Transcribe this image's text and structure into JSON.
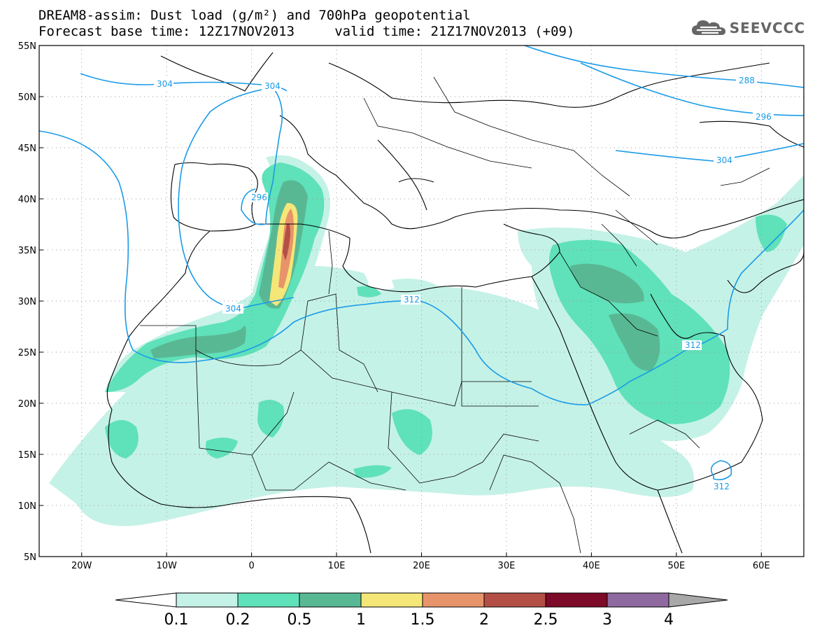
{
  "title": {
    "line1": "DREAM8-assim: Dust load (g/m²) and 700hPa geopotential",
    "line2": "Forecast base time: 12Z17NOV2013     valid time: 21Z17NOV2013 (+09)"
  },
  "logo": {
    "text": "SEEVCCC",
    "icon": "cloud-icon"
  },
  "axes": {
    "lat_labels": [
      "55N",
      "50N",
      "45N",
      "40N",
      "35N",
      "30N",
      "25N",
      "20N",
      "15N",
      "10N",
      "5N"
    ],
    "lon_labels": [
      "20W",
      "10W",
      "0",
      "10E",
      "20E",
      "30E",
      "40E",
      "50E",
      "60E"
    ],
    "lat_values": [
      55,
      50,
      45,
      40,
      35,
      30,
      25,
      20,
      15,
      10,
      5
    ],
    "lon_values": [
      -20,
      -10,
      0,
      10,
      20,
      30,
      40,
      50,
      60
    ],
    "lon_range": [
      -25,
      65
    ],
    "lat_range": [
      5,
      55
    ],
    "grid": "dotted"
  },
  "contour_labels": [
    "304",
    "304",
    "296",
    "304",
    "312",
    "312",
    "312",
    "288",
    "296",
    "304"
  ],
  "colorbar": {
    "levels": [
      "0.1",
      "0.2",
      "0.5",
      "1",
      "1.5",
      "2",
      "2.5",
      "3",
      "4"
    ],
    "colors": [
      "#c5f2e6",
      "#5fe1b9",
      "#59b894",
      "#f5e678",
      "#e8946a",
      "#b34f44",
      "#7d0a29",
      "#8e6aa0"
    ],
    "under_color": "#ffffff",
    "over_color": "#a8a8a8"
  },
  "dust_colors": {
    "l1": "#c5f2e6",
    "l2": "#5fe1b9",
    "l3": "#59b894",
    "l4": "#f5e678",
    "l5": "#e8946a",
    "l6": "#b34f44"
  },
  "contour_color": "#1a9be8"
}
